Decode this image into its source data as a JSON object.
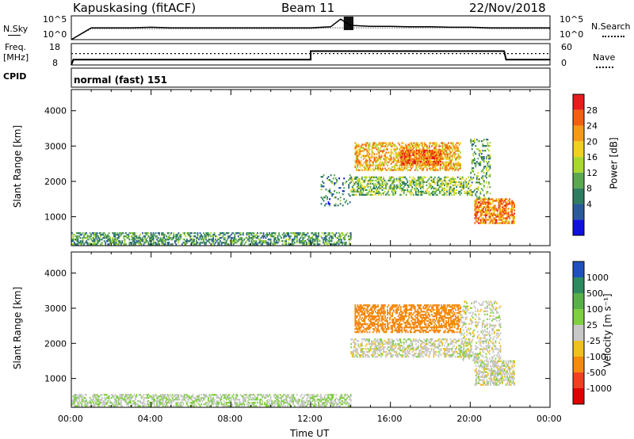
{
  "header": {
    "station": "Kapuskasing (fitACF)",
    "beam": "Beam 11",
    "date": "22/Nov/2018"
  },
  "noise_panel": {
    "left_label": "N.Sky",
    "right_label": "N.Search",
    "y_ticks_left": [
      "10^5",
      "10^0"
    ],
    "y_ticks_right": [
      "10^5",
      "10^0"
    ]
  },
  "freq_panel": {
    "left_label_line1": "Freq.",
    "left_label_line2": "[MHz]",
    "right_label": "Nave",
    "y_ticks_left": [
      "18",
      "8"
    ],
    "y_ticks_right": [
      "60",
      "0"
    ]
  },
  "cpid": {
    "label": "CPID",
    "value": "normal (fast) 151"
  },
  "power_panel": {
    "ylabel": "Slant Range [km]",
    "cbar_label": "Power [dB]",
    "cbar_ticks": [
      "28",
      "24",
      "20",
      "16",
      "12",
      "8",
      "4"
    ],
    "cbar_colors": [
      "#e81c1c",
      "#f06010",
      "#f59a18",
      "#f0d020",
      "#a8d830",
      "#5aa850",
      "#2e7d60",
      "#2a5a9a",
      "#1010e0"
    ]
  },
  "velocity_panel": {
    "ylabel": "Slant Range [km]",
    "cbar_label": "Velocity [m s⁻¹]",
    "cbar_ticks": [
      "1000",
      "500",
      "100",
      "25",
      "-25",
      "-100",
      "-500",
      "-1000"
    ],
    "cbar_colors": [
      "#2050c0",
      "#2c8a60",
      "#58b048",
      "#7fd040",
      "#c8c8c8",
      "#f0c020",
      "#f58a10",
      "#f04020",
      "#e00000"
    ]
  },
  "x_axis": {
    "label": "Time UT",
    "ticks": [
      "00:00",
      "04:00",
      "08:00",
      "12:00",
      "16:00",
      "20:00",
      "00:00"
    ]
  },
  "chart_data": [
    {
      "type": "line",
      "title": "N.Sky / N.Search",
      "x": [
        0,
        1,
        2,
        3,
        4,
        5,
        6,
        7,
        8,
        9,
        10,
        11,
        12,
        13,
        13.5,
        14,
        15,
        16,
        17,
        18,
        19,
        20,
        21,
        22,
        23,
        24
      ],
      "series": [
        {
          "name": "N.Sky",
          "values": [
            1,
            300,
            300,
            300,
            400,
            300,
            300,
            300,
            300,
            300,
            300,
            300,
            300,
            500,
            20000,
            1000,
            600,
            600,
            500,
            500,
            400,
            400,
            300,
            300,
            300,
            300
          ]
        },
        {
          "name": "N.Search",
          "values": [
            1,
            200,
            200,
            200,
            200,
            200,
            200,
            200,
            200,
            200,
            200,
            200,
            200,
            300,
            300,
            300,
            300,
            300,
            300,
            300,
            300,
            300,
            200,
            200,
            200,
            200
          ]
        }
      ],
      "yscale": "log",
      "ylim": [
        1,
        100000
      ]
    },
    {
      "type": "line",
      "title": "Freq. [MHz] / Nave",
      "x": [
        0,
        0.1,
        12,
        12.0,
        21.7,
        21.8,
        24
      ],
      "series": [
        {
          "name": "Freq.",
          "values": [
            8,
            10.5,
            10.5,
            14.5,
            14.5,
            10.5,
            10.5
          ]
        },
        {
          "name": "Nave",
          "values": [
            32,
            32,
            32,
            32,
            32,
            32,
            32
          ]
        }
      ],
      "ylim": [
        8,
        18
      ]
    },
    {
      "type": "heatmap",
      "title": "Power [dB]",
      "xlabel": "Time UT",
      "ylabel": "Slant Range [km]",
      "xlim": [
        0,
        24
      ],
      "ylim": [
        180,
        4600
      ],
      "y_ticks": [
        1000,
        2000,
        3000,
        4000
      ],
      "regions": [
        {
          "t0": 0,
          "t1": 14,
          "r0": 200,
          "r1": 550,
          "value": 10,
          "density": 0.55
        },
        {
          "t0": 14.2,
          "t1": 19.5,
          "r0": 2300,
          "r1": 3100,
          "value": 22,
          "density": 0.55
        },
        {
          "t0": 16.5,
          "t1": 18.5,
          "r0": 2450,
          "r1": 2900,
          "value": 27,
          "density": 0.8
        },
        {
          "t0": 14.0,
          "t1": 20.0,
          "r0": 1600,
          "r1": 2100,
          "value": 14,
          "density": 0.5
        },
        {
          "t0": 20.2,
          "t1": 22.2,
          "r0": 800,
          "r1": 1500,
          "value": 26,
          "density": 0.7
        },
        {
          "t0": 12.5,
          "t1": 14.0,
          "r0": 1300,
          "r1": 2200,
          "value": 8,
          "density": 0.2
        },
        {
          "t0": 20.0,
          "t1": 21.0,
          "r0": 1500,
          "r1": 3200,
          "value": 12,
          "density": 0.3
        }
      ]
    },
    {
      "type": "heatmap",
      "title": "Velocity [m s⁻¹]",
      "xlabel": "Time UT",
      "ylabel": "Slant Range [km]",
      "xlim": [
        0,
        24
      ],
      "ylim": [
        180,
        4600
      ],
      "y_ticks": [
        1000,
        2000,
        3000,
        4000
      ],
      "regions": [
        {
          "t0": 0,
          "t1": 14,
          "r0": 200,
          "r1": 550,
          "value": 20,
          "density": 0.55
        },
        {
          "t0": 14.2,
          "t1": 19.5,
          "r0": 2300,
          "r1": 3100,
          "value": -300,
          "density": 0.6
        },
        {
          "t0": 14.0,
          "t1": 20.0,
          "r0": 1600,
          "r1": 2100,
          "value": 0,
          "density": 0.5
        },
        {
          "t0": 20.2,
          "t1": 22.2,
          "r0": 800,
          "r1": 1500,
          "value": 0,
          "density": 0.6
        },
        {
          "t0": 19.5,
          "t1": 21.5,
          "r0": 1500,
          "r1": 3200,
          "value": 0,
          "density": 0.3
        }
      ]
    }
  ]
}
